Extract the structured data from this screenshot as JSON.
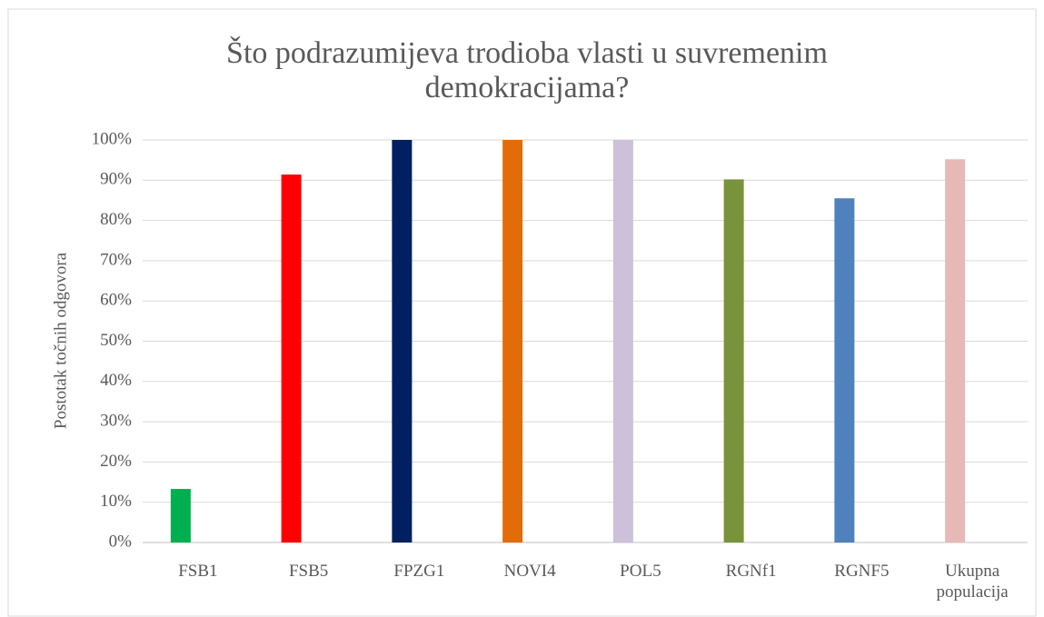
{
  "chart_data": {
    "type": "bar",
    "title": "Što podrazumijeva trodioba vlasti u suvremenim demokracijama?",
    "ylabel": "Postotak točnih odgovora",
    "categories": [
      "FSB1",
      "FSB5",
      "FPZG1",
      "NOVI4",
      "POL5",
      "RGNf1",
      "RGNF5",
      "Ukupna populacija"
    ],
    "values": [
      13.3,
      91.4,
      100,
      100,
      100,
      90.2,
      85.5,
      95.2
    ],
    "colors": [
      "#00b050",
      "#ff0000",
      "#002060",
      "#e36c0a",
      "#ccc0da",
      "#77933c",
      "#4f81bd",
      "#e6b9b8"
    ],
    "ylim": [
      0,
      100
    ],
    "yticks": [
      {
        "value": 0,
        "label": "0%"
      },
      {
        "value": 10,
        "label": "10%"
      },
      {
        "value": 20,
        "label": "20%"
      },
      {
        "value": 30,
        "label": "30%"
      },
      {
        "value": 40,
        "label": "40%"
      },
      {
        "value": 50,
        "label": "50%"
      },
      {
        "value": 60,
        "label": "60%"
      },
      {
        "value": 70,
        "label": "70%"
      },
      {
        "value": 80,
        "label": "80%"
      },
      {
        "value": 90,
        "label": "90%"
      },
      {
        "value": 100,
        "label": "100%"
      }
    ],
    "grid": true
  }
}
